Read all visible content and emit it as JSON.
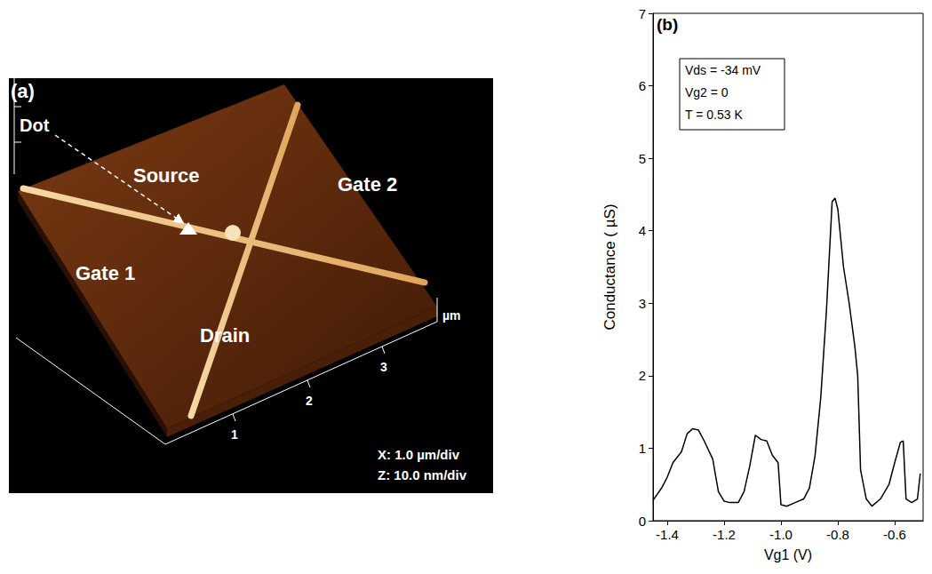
{
  "afm_panel": {
    "panel_label": "(a)",
    "labels": {
      "dot": "Dot",
      "source": "Source",
      "gate2": "Gate 2",
      "gate1": "Gate 1",
      "drain": "Drain"
    },
    "axis_ticks": [
      "1",
      "2",
      "3"
    ],
    "axis_unit": "µm",
    "scale_notes": [
      "X: 1.0 µm/div",
      "Z: 10.0 nm/div"
    ]
  },
  "chart_data": {
    "type": "line",
    "title": "(b)",
    "x_label": "Vg1 (V)",
    "y_label": "Conductance ( µS)",
    "annotations": [
      "Vds = -34 mV",
      "Vg2 = 0",
      "T = 0.53 K"
    ],
    "x": [
      -1.45,
      -1.42,
      -1.4,
      -1.38,
      -1.35,
      -1.33,
      -1.31,
      -1.29,
      -1.27,
      -1.24,
      -1.22,
      -1.2,
      -1.18,
      -1.15,
      -1.13,
      -1.11,
      -1.09,
      -1.07,
      -1.05,
      -1.03,
      -1.01,
      -1.0,
      -0.98,
      -0.95,
      -0.92,
      -0.9,
      -0.88,
      -0.86,
      -0.84,
      -0.82,
      -0.81,
      -0.8,
      -0.78,
      -0.76,
      -0.74,
      -0.73,
      -0.72,
      -0.7,
      -0.68,
      -0.65,
      -0.62,
      -0.6,
      -0.58,
      -0.57,
      -0.56,
      -0.54,
      -0.52,
      -0.51
    ],
    "values": [
      0.28,
      0.45,
      0.6,
      0.8,
      0.95,
      1.2,
      1.27,
      1.25,
      1.1,
      0.85,
      0.4,
      0.27,
      0.25,
      0.25,
      0.4,
      0.75,
      1.18,
      1.12,
      1.1,
      0.9,
      0.8,
      0.22,
      0.2,
      0.25,
      0.3,
      0.45,
      0.9,
      1.7,
      2.9,
      4.4,
      4.45,
      4.3,
      3.5,
      3.0,
      2.4,
      2.0,
      0.7,
      0.3,
      0.2,
      0.3,
      0.5,
      0.8,
      1.08,
      1.1,
      0.3,
      0.25,
      0.3,
      0.65
    ],
    "color": "#000000",
    "xlim": [
      -1.45,
      -0.5
    ],
    "xticks": [
      -1.4,
      -1.2,
      {
        "value": -1,
        "label": "-1.0"
      },
      -0.8,
      -0.6
    ],
    "ylim": [
      0,
      7
    ],
    "yticks": [
      0,
      1,
      2,
      3,
      4,
      5,
      6,
      7
    ],
    "grid": false
  }
}
